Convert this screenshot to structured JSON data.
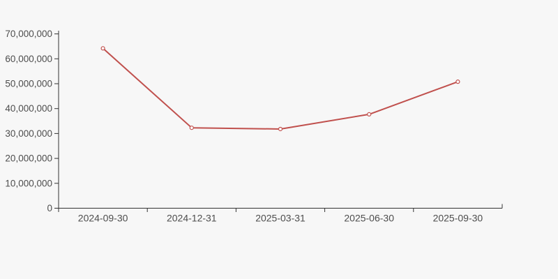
{
  "page": {
    "background_color": "#f7f7f7"
  },
  "chart_data": {
    "type": "line",
    "title": "",
    "categories": [
      "2024-09-30",
      "2024-12-31",
      "2025-03-31",
      "2025-06-30",
      "2025-09-30"
    ],
    "series": [
      {
        "name": "series-1",
        "values": [
          64200000,
          32300000,
          31800000,
          37700000,
          50800000
        ],
        "color": "#c0504d",
        "marker": "hollow-circle"
      }
    ],
    "xlabel": "",
    "ylabel": "",
    "ylim": [
      0,
      70000000
    ],
    "y_tick_interval": 10000000,
    "y_tick_labels": [
      "0",
      "10,000,000",
      "20,000,000",
      "30,000,000",
      "40,000,000",
      "50,000,000",
      "60,000,000",
      "70,000,000"
    ],
    "grid": false,
    "legend": false,
    "axis_color": "#333333",
    "label_color": "#4d4d4d",
    "marker_fill": "#ffffff"
  }
}
